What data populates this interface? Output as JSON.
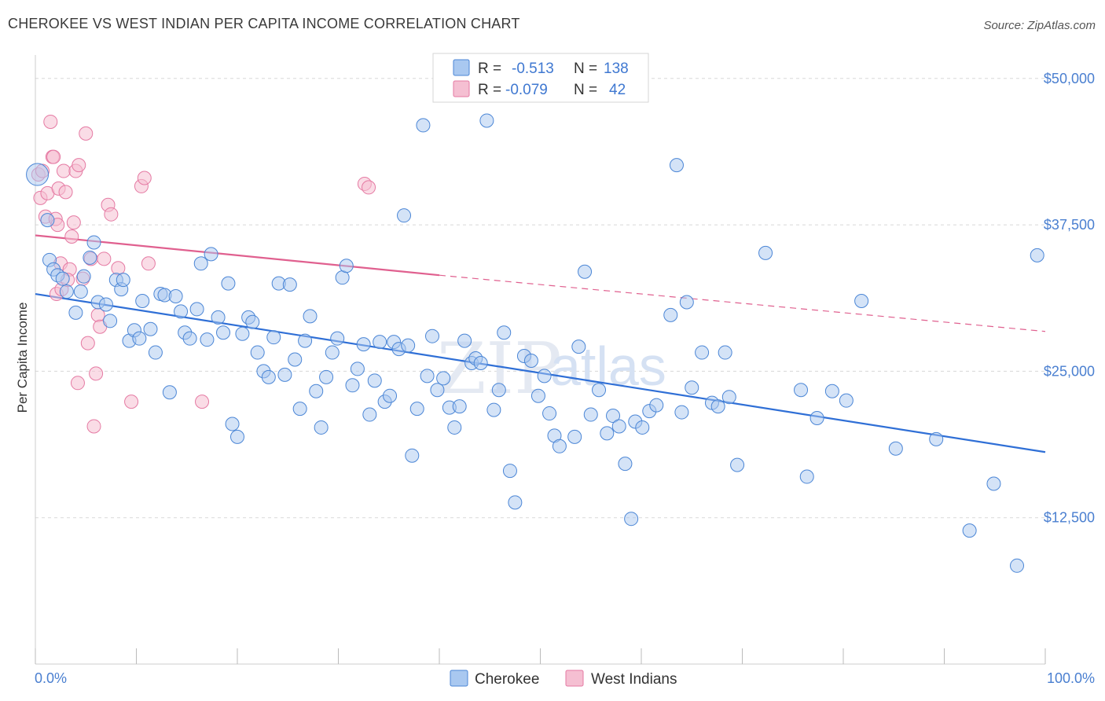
{
  "title": "CHEROKEE VS WEST INDIAN PER CAPITA INCOME CORRELATION CHART",
  "source": "Source: ZipAtlas.com",
  "watermark": {
    "zip": "ZIP",
    "atlas": "atlas"
  },
  "legend": {
    "rows": [
      {
        "r_label": "R =",
        "r_value": "-0.513",
        "n_label": "N =",
        "n_value": "138"
      },
      {
        "r_label": "R =",
        "r_value": "-0.079",
        "n_label": "N =",
        "n_value": "42"
      }
    ]
  },
  "colors": {
    "cherokee_fill": "#a9c8f0",
    "cherokee_stroke": "#4b86d6",
    "cherokee_line": "#2f6fd6",
    "westindian_fill": "#f5bfd2",
    "westindian_stroke": "#e57aa3",
    "westindian_line": "#e0608f",
    "tick_text": "#4a7fd0",
    "grid": "#d8d8d8"
  },
  "chart_data": {
    "type": "scatter",
    "title": "CHEROKEE VS WEST INDIAN PER CAPITA INCOME CORRELATION CHART",
    "xlabel": "",
    "ylabel": "Per Capita Income",
    "xlim": [
      0,
      100
    ],
    "ylim": [
      0,
      52000
    ],
    "x_tick_labels": [
      "0.0%",
      "100.0%"
    ],
    "y_ticks": [
      12500,
      25000,
      37500,
      50000
    ],
    "y_tick_labels": [
      "$12,500",
      "$25,000",
      "$37,500",
      "$50,000"
    ],
    "grid": true,
    "legend_position": "bottom-center",
    "series": [
      {
        "name": "Cherokee",
        "points": [
          [
            0.2,
            41800
          ],
          [
            1.2,
            37900
          ],
          [
            1.4,
            34500
          ],
          [
            1.8,
            33700
          ],
          [
            2.2,
            33200
          ],
          [
            2.7,
            32900
          ],
          [
            3.1,
            31800
          ],
          [
            4.0,
            30000
          ],
          [
            4.5,
            31800
          ],
          [
            4.8,
            33100
          ],
          [
            5.4,
            34700
          ],
          [
            5.8,
            36000
          ],
          [
            6.2,
            30900
          ],
          [
            7.0,
            30700
          ],
          [
            7.4,
            29300
          ],
          [
            8.0,
            32800
          ],
          [
            8.5,
            32000
          ],
          [
            8.7,
            32800
          ],
          [
            9.3,
            27600
          ],
          [
            9.8,
            28500
          ],
          [
            10.3,
            27800
          ],
          [
            10.6,
            31000
          ],
          [
            11.4,
            28600
          ],
          [
            11.9,
            26600
          ],
          [
            12.4,
            31600
          ],
          [
            12.8,
            31500
          ],
          [
            13.3,
            23200
          ],
          [
            13.9,
            31400
          ],
          [
            14.4,
            30100
          ],
          [
            14.8,
            28300
          ],
          [
            15.3,
            27800
          ],
          [
            16.0,
            30300
          ],
          [
            16.4,
            34200
          ],
          [
            17.0,
            27700
          ],
          [
            17.4,
            35000
          ],
          [
            18.1,
            29600
          ],
          [
            18.6,
            28300
          ],
          [
            19.1,
            32500
          ],
          [
            19.5,
            20500
          ],
          [
            20.0,
            19400
          ],
          [
            20.5,
            28200
          ],
          [
            21.1,
            29600
          ],
          [
            21.5,
            29200
          ],
          [
            22.0,
            26600
          ],
          [
            22.6,
            25000
          ],
          [
            23.1,
            24500
          ],
          [
            23.6,
            27900
          ],
          [
            24.1,
            32500
          ],
          [
            24.7,
            24700
          ],
          [
            25.2,
            32400
          ],
          [
            25.7,
            26000
          ],
          [
            26.2,
            21800
          ],
          [
            26.7,
            27600
          ],
          [
            27.2,
            29700
          ],
          [
            27.8,
            23300
          ],
          [
            28.3,
            20200
          ],
          [
            28.8,
            24500
          ],
          [
            29.4,
            26600
          ],
          [
            29.9,
            27800
          ],
          [
            30.4,
            33000
          ],
          [
            30.8,
            34000
          ],
          [
            31.4,
            23800
          ],
          [
            31.9,
            25200
          ],
          [
            32.5,
            27300
          ],
          [
            33.1,
            21300
          ],
          [
            33.6,
            24200
          ],
          [
            34.1,
            27500
          ],
          [
            34.6,
            22400
          ],
          [
            35.1,
            22900
          ],
          [
            35.5,
            27500
          ],
          [
            36.0,
            26900
          ],
          [
            36.5,
            38300
          ],
          [
            36.9,
            27200
          ],
          [
            37.3,
            17800
          ],
          [
            37.8,
            21800
          ],
          [
            38.4,
            46000
          ],
          [
            38.8,
            24600
          ],
          [
            39.3,
            28000
          ],
          [
            39.8,
            23400
          ],
          [
            40.4,
            24400
          ],
          [
            41.0,
            21900
          ],
          [
            41.5,
            20200
          ],
          [
            42.0,
            22000
          ],
          [
            42.5,
            27600
          ],
          [
            43.2,
            25700
          ],
          [
            43.6,
            26100
          ],
          [
            44.1,
            25700
          ],
          [
            44.7,
            46400
          ],
          [
            45.4,
            21700
          ],
          [
            45.9,
            23400
          ],
          [
            46.4,
            28300
          ],
          [
            47.0,
            16500
          ],
          [
            47.5,
            13800
          ],
          [
            48.4,
            26300
          ],
          [
            49.1,
            25900
          ],
          [
            49.8,
            22900
          ],
          [
            50.4,
            24600
          ],
          [
            50.9,
            21400
          ],
          [
            51.4,
            19500
          ],
          [
            51.9,
            18600
          ],
          [
            53.4,
            19400
          ],
          [
            53.8,
            27100
          ],
          [
            54.4,
            33500
          ],
          [
            55.0,
            21300
          ],
          [
            55.8,
            23400
          ],
          [
            56.6,
            19700
          ],
          [
            57.2,
            21200
          ],
          [
            57.8,
            20300
          ],
          [
            58.4,
            17100
          ],
          [
            59.0,
            12400
          ],
          [
            59.4,
            20700
          ],
          [
            60.1,
            20200
          ],
          [
            60.8,
            21600
          ],
          [
            61.5,
            22100
          ],
          [
            62.9,
            29800
          ],
          [
            63.5,
            42600
          ],
          [
            64.0,
            21500
          ],
          [
            64.5,
            30900
          ],
          [
            65.0,
            23600
          ],
          [
            66.0,
            26600
          ],
          [
            67.0,
            22300
          ],
          [
            67.6,
            22000
          ],
          [
            68.3,
            26600
          ],
          [
            68.7,
            22800
          ],
          [
            69.5,
            17000
          ],
          [
            72.3,
            35100
          ],
          [
            75.8,
            23400
          ],
          [
            76.4,
            16000
          ],
          [
            77.4,
            21000
          ],
          [
            78.9,
            23300
          ],
          [
            80.3,
            22500
          ],
          [
            81.8,
            31000
          ],
          [
            85.2,
            18400
          ],
          [
            89.2,
            19200
          ],
          [
            92.5,
            11400
          ],
          [
            94.9,
            15400
          ],
          [
            97.2,
            8400
          ],
          [
            99.2,
            34900
          ]
        ],
        "trend": {
          "x": [
            0,
            100
          ],
          "y": [
            31600,
            18100
          ]
        }
      },
      {
        "name": "West Indians",
        "points": [
          [
            0.3,
            41800
          ],
          [
            0.5,
            39800
          ],
          [
            0.7,
            42100
          ],
          [
            1.0,
            38200
          ],
          [
            1.2,
            40200
          ],
          [
            1.5,
            46300
          ],
          [
            1.7,
            43300
          ],
          [
            1.8,
            43300
          ],
          [
            2.0,
            38000
          ],
          [
            2.1,
            31600
          ],
          [
            2.3,
            40600
          ],
          [
            2.5,
            34200
          ],
          [
            2.6,
            32000
          ],
          [
            2.8,
            42100
          ],
          [
            3.0,
            40300
          ],
          [
            3.4,
            33700
          ],
          [
            3.6,
            36500
          ],
          [
            3.8,
            37700
          ],
          [
            4.0,
            42100
          ],
          [
            4.2,
            24000
          ],
          [
            4.3,
            42600
          ],
          [
            4.7,
            32900
          ],
          [
            5.0,
            45300
          ],
          [
            5.2,
            27400
          ],
          [
            5.5,
            34600
          ],
          [
            5.8,
            20300
          ],
          [
            6.0,
            24800
          ],
          [
            6.2,
            29800
          ],
          [
            6.4,
            28800
          ],
          [
            6.8,
            34600
          ],
          [
            7.2,
            39200
          ],
          [
            7.5,
            38400
          ],
          [
            8.2,
            33800
          ],
          [
            9.5,
            22400
          ],
          [
            10.5,
            40800
          ],
          [
            10.8,
            41500
          ],
          [
            11.2,
            34200
          ],
          [
            16.5,
            22400
          ],
          [
            32.6,
            41000
          ],
          [
            33.0,
            40700
          ],
          [
            2.2,
            37500
          ],
          [
            3.2,
            32800
          ]
        ],
        "trend": {
          "x": [
            0,
            40
          ],
          "y": [
            36600,
            33200
          ]
        },
        "trend_dashed": {
          "x": [
            40,
            100
          ],
          "y": [
            33200,
            28400
          ]
        }
      }
    ]
  }
}
